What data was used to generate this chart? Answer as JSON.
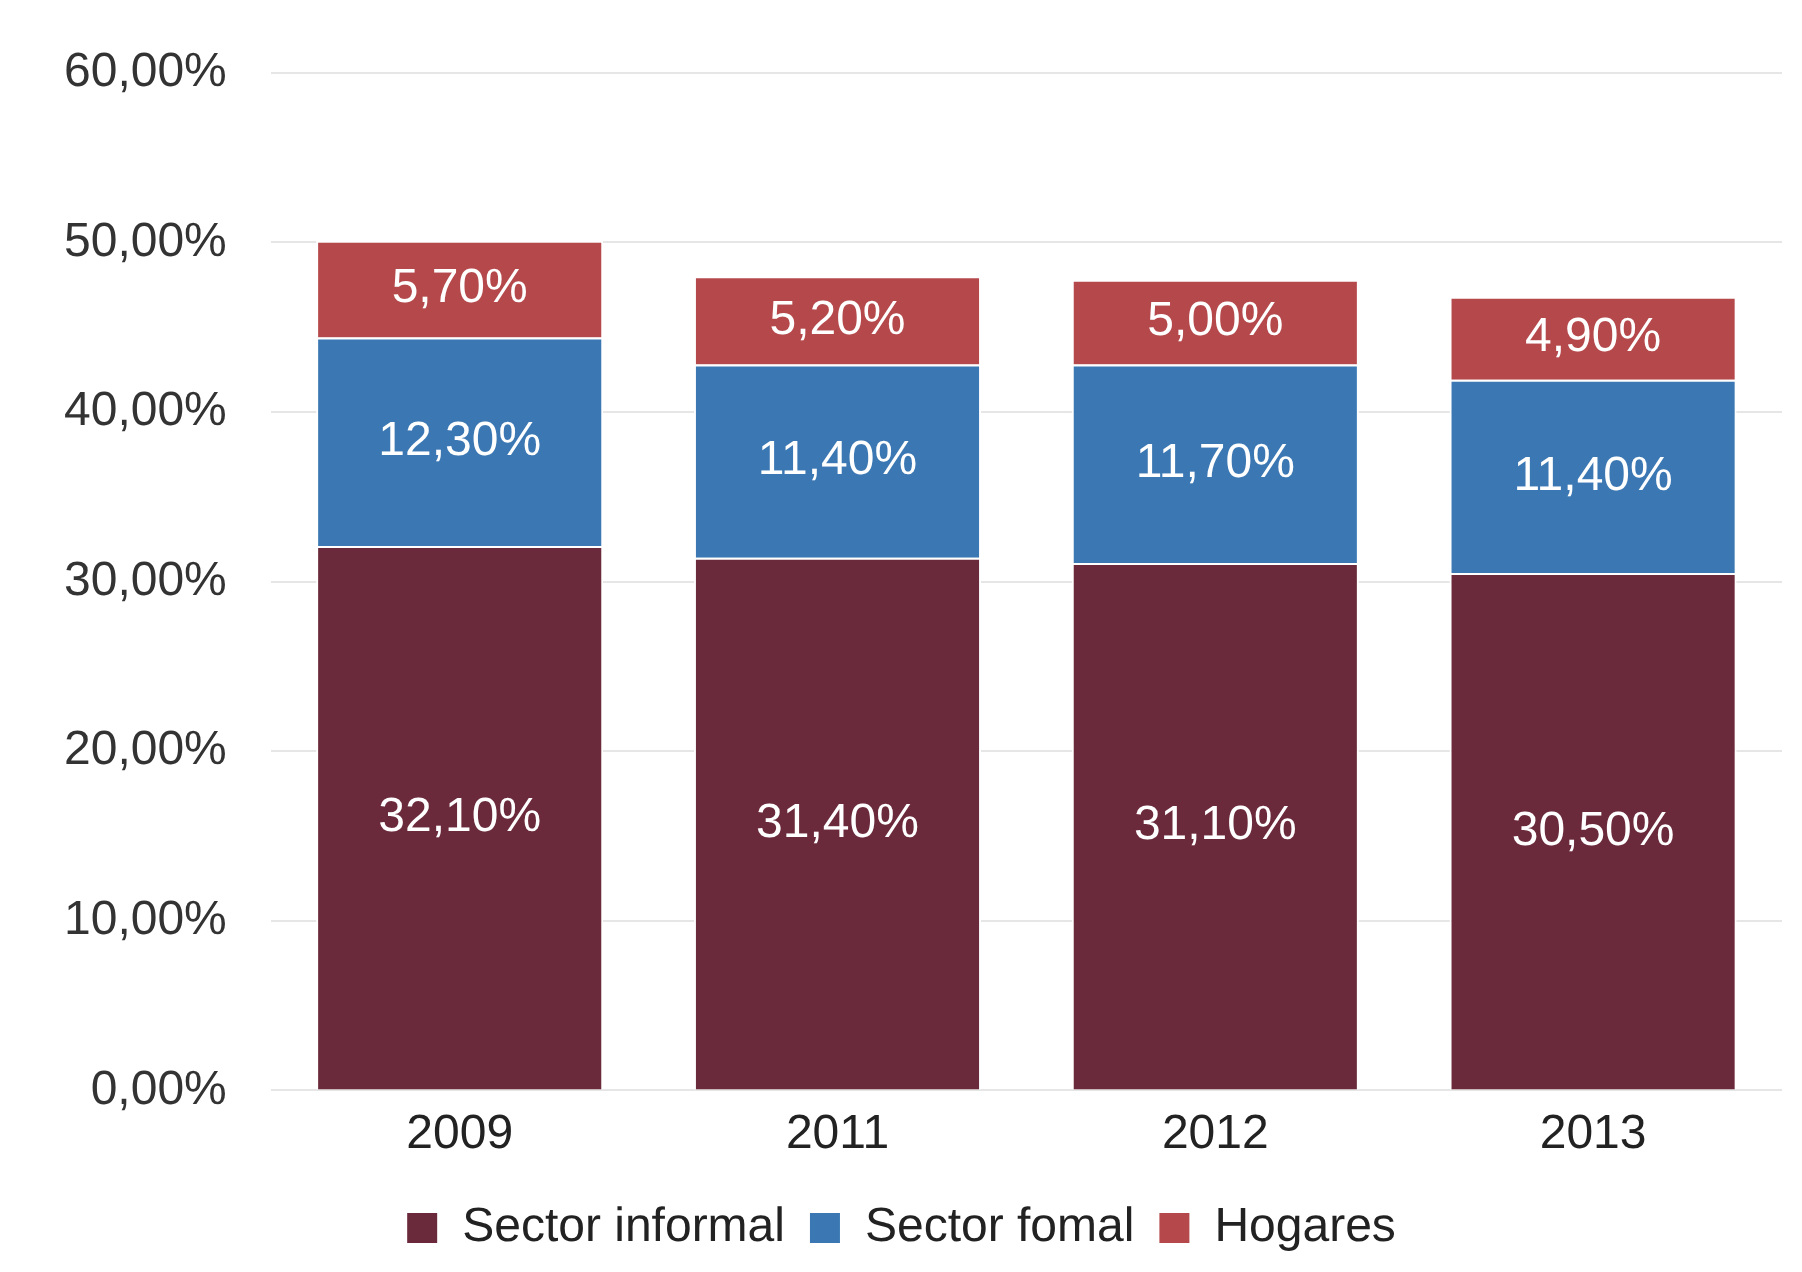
{
  "chart_data": {
    "type": "bar",
    "stacked": true,
    "categories": [
      "2009",
      "2011",
      "2012",
      "2013"
    ],
    "series": [
      {
        "name": "Sector informal",
        "color": "#6b2a3b",
        "values": [
          32.1,
          31.4,
          31.1,
          30.5
        ],
        "value_labels": [
          "32,10%",
          "31,40%",
          "31,10%",
          "30,50%"
        ]
      },
      {
        "name": "Sector fomal",
        "color": "#3b78b3",
        "values": [
          12.3,
          11.4,
          11.7,
          11.4
        ],
        "value_labels": [
          "12,30%",
          "11,40%",
          "11,70%",
          "11,40%"
        ]
      },
      {
        "name": "Hogares",
        "color": "#b5484b",
        "values": [
          5.7,
          5.2,
          5.0,
          4.9
        ],
        "value_labels": [
          "5,70%",
          "5,20%",
          "5,00%",
          "4,90%"
        ]
      }
    ],
    "ylim": [
      0,
      60
    ],
    "yticks": [
      {
        "value": 0,
        "label": "0,00%"
      },
      {
        "value": 10,
        "label": "10,00%"
      },
      {
        "value": 20,
        "label": "20,00%"
      },
      {
        "value": 30,
        "label": "30,00%"
      },
      {
        "value": 40,
        "label": "40,00%"
      },
      {
        "value": 50,
        "label": "50,00%"
      },
      {
        "value": 60,
        "label": "60,00%"
      }
    ],
    "grid": "y",
    "legend": "bottom"
  }
}
